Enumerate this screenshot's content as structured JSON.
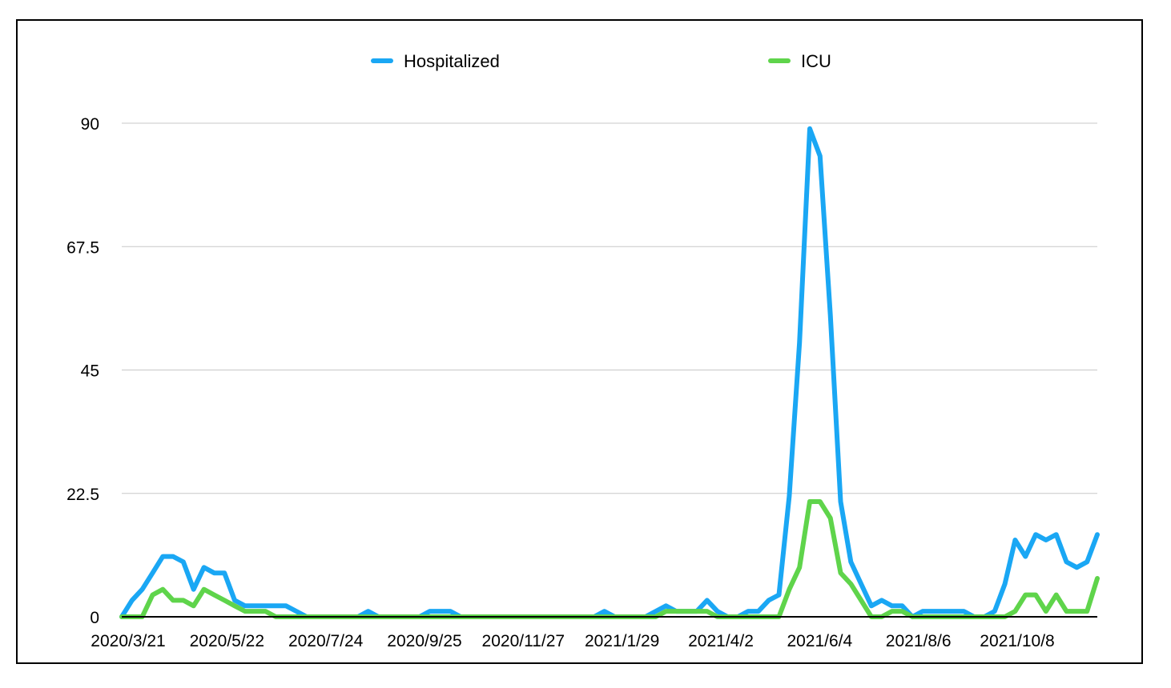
{
  "chart_data": {
    "type": "line",
    "title": "",
    "xlabel": "",
    "ylabel": "",
    "ylim": [
      0,
      90
    ],
    "yticks": [
      0,
      22.5,
      45,
      67.5,
      90
    ],
    "yticks_labels": [
      "0",
      "22.5",
      "45",
      "67.5",
      "90"
    ],
    "xtick_labels": [
      "2020/3/21",
      "2020/5/22",
      "2020/7/24",
      "2020/9/25",
      "2020/11/27",
      "2021/1/29",
      "2021/4/2",
      "2021/6/4",
      "2021/8/6",
      "2021/10/8"
    ],
    "grid": true,
    "legend_position": "top-center",
    "series": [
      {
        "name": "Hospitalized",
        "color": "#1aa7f4",
        "values": [
          0,
          3,
          5,
          8,
          11,
          11,
          10,
          5,
          9,
          8,
          8,
          3,
          2,
          2,
          2,
          2,
          2,
          1,
          0,
          0,
          0,
          0,
          0,
          0,
          1,
          0,
          0,
          0,
          0,
          0,
          1,
          1,
          1,
          0,
          0,
          0,
          0,
          0,
          0,
          0,
          0,
          0,
          0,
          0,
          0,
          0,
          0,
          1,
          0,
          0,
          0,
          0,
          1,
          2,
          1,
          1,
          1,
          3,
          1,
          0,
          0,
          1,
          1,
          3,
          4,
          22,
          50,
          89,
          84,
          55,
          21,
          10,
          6,
          2,
          3,
          2,
          2,
          0,
          1,
          1,
          1,
          1,
          1,
          0,
          0,
          1,
          6,
          14,
          11,
          15,
          14,
          15,
          10,
          9,
          10,
          15
        ]
      },
      {
        "name": "ICU",
        "color": "#5fd44b",
        "values": [
          0,
          0,
          0,
          4,
          5,
          3,
          3,
          2,
          5,
          4,
          3,
          2,
          1,
          1,
          1,
          0,
          0,
          0,
          0,
          0,
          0,
          0,
          0,
          0,
          0,
          0,
          0,
          0,
          0,
          0,
          0,
          0,
          0,
          0,
          0,
          0,
          0,
          0,
          0,
          0,
          0,
          0,
          0,
          0,
          0,
          0,
          0,
          0,
          0,
          0,
          0,
          0,
          0,
          1,
          1,
          1,
          1,
          1,
          0,
          0,
          0,
          0,
          0,
          0,
          0,
          5,
          9,
          21,
          21,
          18,
          8,
          6,
          3,
          0,
          0,
          1,
          1,
          0,
          0,
          0,
          0,
          0,
          0,
          0,
          0,
          0,
          0,
          1,
          4,
          4,
          1,
          4,
          1,
          1,
          1,
          7
        ]
      }
    ]
  }
}
